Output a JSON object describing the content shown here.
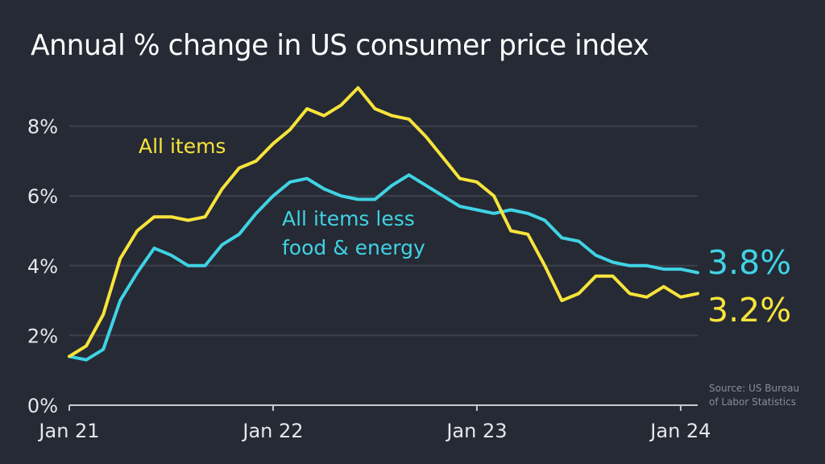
{
  "chart_data": {
    "type": "line",
    "title": "Annual % change in US consumer price index",
    "xlabel": "",
    "ylabel": "",
    "ylim": [
      0,
      9.5
    ],
    "yticks": [
      0,
      2,
      4,
      6,
      8
    ],
    "ytick_labels": [
      "0%",
      "2%",
      "4%",
      "6%",
      "8%"
    ],
    "xticks": [
      "Jan 21",
      "Jan 22",
      "Jan 23",
      "Jan 24"
    ],
    "xtick_month_index": [
      0,
      12,
      24,
      36
    ],
    "x_start": "Jan 2021",
    "x_end": "Feb 2024",
    "grid": true,
    "series": [
      {
        "name": "All items",
        "color": "#f7e43a",
        "end_label": "3.2%",
        "values": [
          1.4,
          1.7,
          2.6,
          4.2,
          5.0,
          5.4,
          5.4,
          5.3,
          5.4,
          6.2,
          6.8,
          7.0,
          7.5,
          7.9,
          8.5,
          8.3,
          8.6,
          9.1,
          8.5,
          8.3,
          8.2,
          7.7,
          7.1,
          6.5,
          6.4,
          6.0,
          5.0,
          4.9,
          4.0,
          3.0,
          3.2,
          3.7,
          3.7,
          3.2,
          3.1,
          3.4,
          3.1,
          3.2
        ]
      },
      {
        "name": "All items less food & energy",
        "label_lines": [
          "All items less",
          "food & energy"
        ],
        "color": "#3fd3e4",
        "end_label": "3.8%",
        "values": [
          1.4,
          1.3,
          1.6,
          3.0,
          3.8,
          4.5,
          4.3,
          4.0,
          4.0,
          4.6,
          4.9,
          5.5,
          6.0,
          6.4,
          6.5,
          6.2,
          6.0,
          5.9,
          5.9,
          6.3,
          6.6,
          6.3,
          6.0,
          5.7,
          5.6,
          5.5,
          5.6,
          5.5,
          5.3,
          4.8,
          4.7,
          4.3,
          4.1,
          4.0,
          4.0,
          3.9,
          3.9,
          3.8
        ]
      }
    ],
    "source_lines": [
      "Source: US Bureau",
      "of Labor Statistics"
    ]
  },
  "colors": {
    "background": "#262a35",
    "grid": "#3d414c",
    "axis": "#c9cbd0",
    "text": "#ffffff"
  }
}
